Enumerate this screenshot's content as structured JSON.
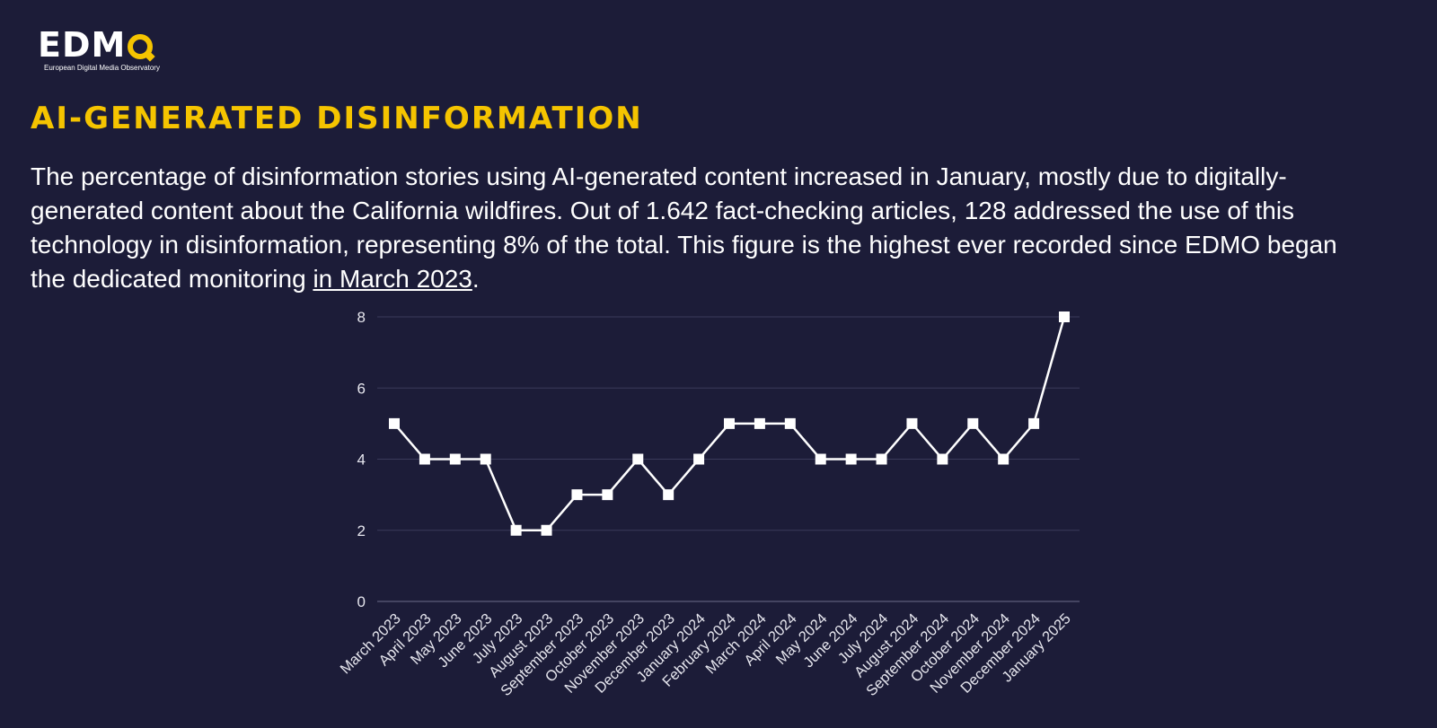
{
  "logo": {
    "word": "EDM",
    "subtitle": "European Digital Media Observatory"
  },
  "heading": "AI-generated disinformation",
  "description": {
    "text": "The percentage of disinformation stories using AI-generated content increased in January, mostly due to digitally-generated content about the California wildfires. Out of 1.642 fact-checking articles, 128 addressed the use of this technology in disinformation, representing 8% of the total. This figure is the highest ever recorded since EDMO began the dedicated monitoring ",
    "link_text": "in March 2023",
    "trailing": "."
  },
  "colors": {
    "background": "#1c1c38",
    "accent": "#f5c400",
    "line": "#ffffff",
    "grid": "#3a3a5a"
  },
  "chart_data": {
    "type": "line",
    "title": "",
    "xlabel": "",
    "ylabel": "",
    "ylim": [
      0,
      8
    ],
    "yticks": [
      0,
      2,
      4,
      6,
      8
    ],
    "grid": true,
    "marker": "square",
    "categories": [
      "March 2023",
      "April 2023",
      "May 2023",
      "June 2023",
      "July 2023",
      "August 2023",
      "September 2023",
      "October 2023",
      "November 2023",
      "December 2023",
      "January 2024",
      "February 2024",
      "March 2024",
      "April 2024",
      "May 2024",
      "June 2024",
      "July 2024",
      "August 2024",
      "September 2024",
      "October 2024",
      "November 2024",
      "December 2024",
      "January 2025"
    ],
    "series": [
      {
        "values": [
          5,
          4,
          4,
          4,
          2,
          2,
          3,
          3,
          4,
          3,
          4,
          5,
          5,
          5,
          4,
          4,
          4,
          5,
          4,
          5,
          4,
          5,
          8
        ]
      }
    ]
  }
}
